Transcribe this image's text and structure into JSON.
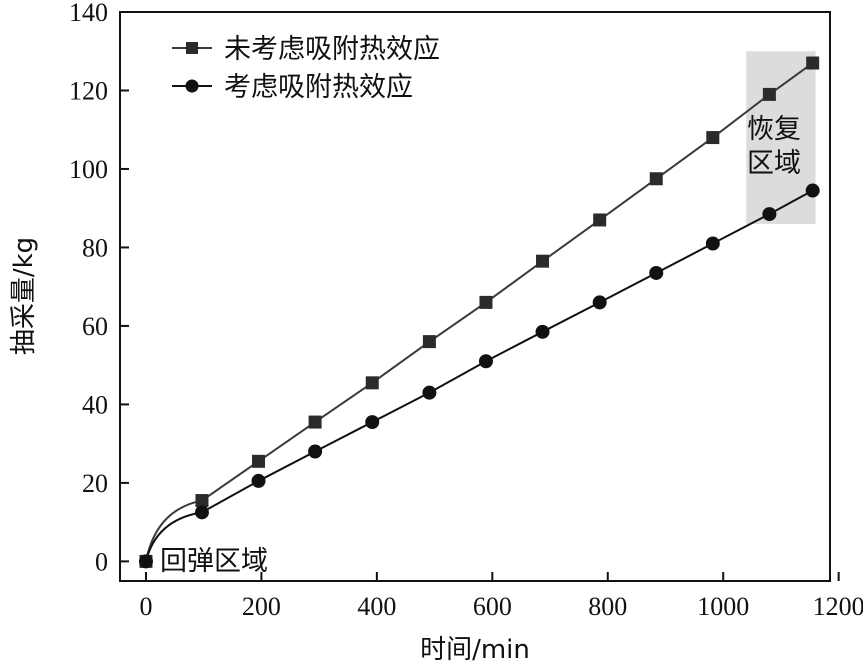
{
  "chart_data": {
    "type": "line",
    "xlabel": "时间/min",
    "ylabel": "抽采量/kg",
    "xlim": [
      -45,
      1185
    ],
    "ylim": [
      -5,
      140
    ],
    "xticks": [
      0,
      200,
      400,
      600,
      800,
      1000,
      1200
    ],
    "yticks": [
      0,
      20,
      40,
      60,
      80,
      100,
      120,
      140
    ],
    "grid": false,
    "legend_position": "top-left",
    "series": [
      {
        "name": "未考虑吸附热效应",
        "marker": "square",
        "color": "#3a3a3a",
        "x": [
          0,
          97,
          195,
          293,
          392,
          491,
          589,
          687,
          786,
          884,
          982,
          1080,
          1155
        ],
        "y": [
          0,
          15.5,
          25.5,
          35.5,
          45.5,
          56,
          66,
          76.5,
          87,
          97.5,
          108,
          119,
          127
        ]
      },
      {
        "name": "考虑吸附热效应",
        "marker": "circle",
        "color": "#111111",
        "x": [
          0,
          97,
          195,
          293,
          392,
          491,
          589,
          687,
          786,
          884,
          982,
          1080,
          1155
        ],
        "y": [
          0,
          12.5,
          20.5,
          28,
          35.5,
          43,
          51,
          58.5,
          66,
          73.5,
          81,
          88.5,
          94.5
        ]
      }
    ],
    "annotations": [
      {
        "text": "回弹区域",
        "x": 0,
        "y": 0,
        "anchor": "right"
      },
      {
        "lines": [
          "恢复",
          "区域"
        ],
        "shade_x": [
          1040,
          1160
        ],
        "shade_y": [
          86,
          130
        ],
        "shade_color": "#dcdcdc"
      }
    ]
  }
}
